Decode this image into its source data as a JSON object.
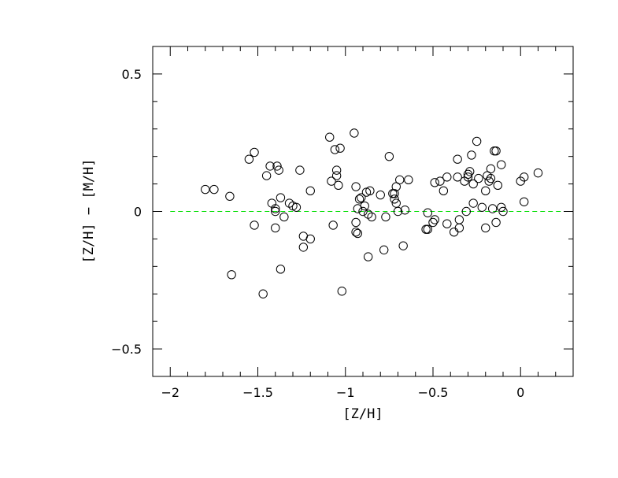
{
  "chart_data": {
    "type": "scatter",
    "xlabel": "[Z/H]",
    "ylabel": "[Z/H]  −  [M/H]",
    "xlim": [
      -2.1,
      0.3
    ],
    "ylim": [
      -0.6,
      0.6
    ],
    "x_ticks": [
      -2,
      -1.5,
      -1,
      -0.5,
      0
    ],
    "x_tick_labels": [
      "−2",
      "−1.5",
      "−1",
      "−0.5",
      "0"
    ],
    "y_ticks": [
      -0.5,
      0,
      0.5
    ],
    "y_tick_labels": [
      "−0.5",
      "0",
      "0.5"
    ],
    "reference_line": {
      "y": 0,
      "style": "dashed",
      "color": "#00dd00"
    },
    "marker": "open-circle",
    "points": [
      [
        -1.8,
        0.08
      ],
      [
        -1.75,
        0.08
      ],
      [
        -1.66,
        0.055
      ],
      [
        -1.65,
        -0.23
      ],
      [
        -1.55,
        0.19
      ],
      [
        -1.52,
        0.215
      ],
      [
        -1.52,
        -0.05
      ],
      [
        -1.47,
        -0.3
      ],
      [
        -1.45,
        0.13
      ],
      [
        -1.43,
        0.165
      ],
      [
        -1.42,
        0.03
      ],
      [
        -1.4,
        0.01
      ],
      [
        -1.4,
        0.0
      ],
      [
        -1.4,
        -0.06
      ],
      [
        -1.39,
        0.165
      ],
      [
        -1.38,
        0.15
      ],
      [
        -1.37,
        0.05
      ],
      [
        -1.37,
        -0.21
      ],
      [
        -1.35,
        -0.02
      ],
      [
        -1.32,
        0.03
      ],
      [
        -1.3,
        0.02
      ],
      [
        -1.28,
        0.015
      ],
      [
        -1.26,
        0.15
      ],
      [
        -1.24,
        -0.09
      ],
      [
        -1.24,
        -0.13
      ],
      [
        -1.2,
        0.075
      ],
      [
        -1.2,
        -0.1
      ],
      [
        -1.09,
        0.27
      ],
      [
        -1.08,
        0.11
      ],
      [
        -1.07,
        -0.05
      ],
      [
        -1.06,
        0.225
      ],
      [
        -1.05,
        0.13
      ],
      [
        -1.05,
        0.15
      ],
      [
        -1.04,
        0.095
      ],
      [
        -1.03,
        0.23
      ],
      [
        -1.02,
        -0.29
      ],
      [
        -0.95,
        0.285
      ],
      [
        -0.94,
        0.09
      ],
      [
        -0.94,
        -0.04
      ],
      [
        -0.94,
        -0.075
      ],
      [
        -0.93,
        0.01
      ],
      [
        -0.93,
        -0.08
      ],
      [
        -0.92,
        0.045
      ],
      [
        -0.91,
        0.05
      ],
      [
        -0.9,
        0.0
      ],
      [
        -0.89,
        0.02
      ],
      [
        -0.88,
        0.07
      ],
      [
        -0.87,
        -0.165
      ],
      [
        -0.87,
        -0.01
      ],
      [
        -0.86,
        0.075
      ],
      [
        -0.85,
        -0.02
      ],
      [
        -0.8,
        0.06
      ],
      [
        -0.78,
        -0.14
      ],
      [
        -0.77,
        -0.02
      ],
      [
        -0.75,
        0.2
      ],
      [
        -0.73,
        0.065
      ],
      [
        -0.72,
        0.045
      ],
      [
        -0.72,
        0.065
      ],
      [
        -0.71,
        0.03
      ],
      [
        -0.71,
        0.09
      ],
      [
        -0.7,
        0.0
      ],
      [
        -0.69,
        0.115
      ],
      [
        -0.67,
        -0.125
      ],
      [
        -0.66,
        0.005
      ],
      [
        -0.64,
        0.115
      ],
      [
        -0.54,
        -0.065
      ],
      [
        -0.53,
        -0.005
      ],
      [
        -0.53,
        -0.065
      ],
      [
        -0.5,
        -0.04
      ],
      [
        -0.49,
        0.105
      ],
      [
        -0.49,
        -0.03
      ],
      [
        -0.46,
        0.11
      ],
      [
        -0.44,
        0.075
      ],
      [
        -0.42,
        0.125
      ],
      [
        -0.42,
        -0.045
      ],
      [
        -0.38,
        -0.075
      ],
      [
        -0.36,
        0.19
      ],
      [
        -0.36,
        0.125
      ],
      [
        -0.35,
        -0.03
      ],
      [
        -0.35,
        -0.06
      ],
      [
        -0.32,
        0.11
      ],
      [
        -0.31,
        0.0
      ],
      [
        -0.3,
        0.125
      ],
      [
        -0.3,
        0.135
      ],
      [
        -0.29,
        0.145
      ],
      [
        -0.28,
        0.205
      ],
      [
        -0.27,
        0.1
      ],
      [
        -0.27,
        0.03
      ],
      [
        -0.25,
        0.255
      ],
      [
        -0.24,
        0.12
      ],
      [
        -0.22,
        0.015
      ],
      [
        -0.2,
        0.075
      ],
      [
        -0.2,
        -0.06
      ],
      [
        -0.19,
        0.13
      ],
      [
        -0.18,
        0.11
      ],
      [
        -0.17,
        0.12
      ],
      [
        -0.17,
        0.155
      ],
      [
        -0.16,
        0.01
      ],
      [
        -0.15,
        0.22
      ],
      [
        -0.14,
        0.22
      ],
      [
        -0.14,
        -0.04
      ],
      [
        -0.13,
        0.095
      ],
      [
        -0.11,
        0.17
      ],
      [
        -0.11,
        0.015
      ],
      [
        -0.1,
        0.0
      ],
      [
        0.0,
        0.11
      ],
      [
        0.02,
        0.035
      ],
      [
        0.02,
        0.125
      ],
      [
        0.1,
        0.14
      ]
    ]
  }
}
